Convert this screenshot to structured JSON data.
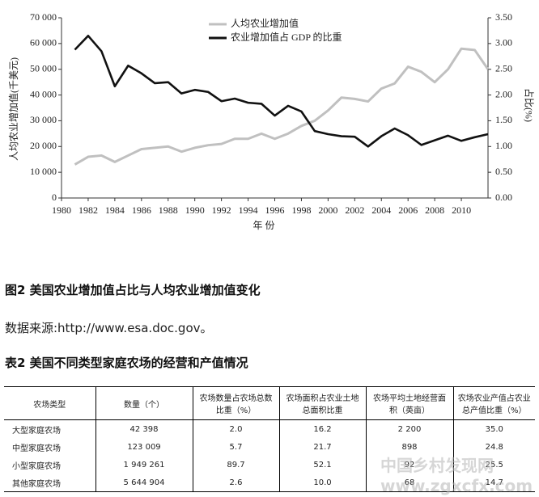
{
  "chart_data": {
    "type": "line",
    "y_label": "人均农业增加值(千美元)",
    "y2_label": "占比(%)",
    "x_label": "年 份",
    "x": [
      1981,
      1982,
      1983,
      1984,
      1985,
      1986,
      1987,
      1988,
      1989,
      1990,
      1991,
      1992,
      1993,
      1994,
      1995,
      1996,
      1997,
      1998,
      1999,
      2000,
      2001,
      2002,
      2003,
      2004,
      2005,
      2006,
      2007,
      2008,
      2009,
      2010,
      2011,
      2012
    ],
    "series": [
      {
        "name": "人均农业增加值",
        "color": "#c0c0c0",
        "values": [
          13000,
          16000,
          16500,
          14000,
          16500,
          19000,
          19500,
          20000,
          18000,
          19500,
          20500,
          21000,
          23000,
          23000,
          25000,
          23000,
          25000,
          28000,
          30000,
          34000,
          39000,
          38500,
          37500,
          42500,
          44500,
          51000,
          49000,
          45000,
          50000,
          58000,
          57500,
          50000
        ]
      },
      {
        "name": "农业增加值占 GDP 的比重",
        "color": "#111111",
        "axis": "y2",
        "values": [
          2.88,
          3.15,
          2.85,
          2.17,
          2.57,
          2.42,
          2.23,
          2.25,
          2.03,
          2.1,
          2.06,
          1.88,
          1.93,
          1.85,
          1.83,
          1.6,
          1.79,
          1.68,
          1.3,
          1.24,
          1.2,
          1.19,
          1.0,
          1.2,
          1.35,
          1.22,
          1.03,
          1.12,
          1.21,
          1.11,
          1.18,
          1.24
        ]
      }
    ],
    "xlim": [
      1980,
      2012
    ],
    "xticks": [
      1980,
      1982,
      1984,
      1986,
      1988,
      1990,
      1992,
      1994,
      1996,
      1998,
      2000,
      2002,
      2004,
      2006,
      2008,
      2010
    ],
    "ylim": [
      0,
      70000
    ],
    "yticks": [
      0,
      {
        "value": 10000,
        "label": "10 000"
      },
      {
        "value": 20000,
        "label": "20 000"
      },
      {
        "value": 30000,
        "label": "30 000"
      },
      {
        "value": 40000,
        "label": "40 000"
      },
      {
        "value": 50000,
        "label": "50 000"
      },
      {
        "value": 60000,
        "label": "60 000"
      },
      {
        "value": 70000,
        "label": "70 000"
      }
    ],
    "y2lim": [
      0,
      3.5
    ],
    "y2ticks": [
      {
        "value": 0,
        "label": "0.00"
      },
      {
        "value": 0.5,
        "label": "0.50"
      },
      {
        "value": 1,
        "label": "1.00"
      },
      {
        "value": 1.5,
        "label": "1.50"
      },
      {
        "value": 2,
        "label": "2.00"
      },
      {
        "value": 2.5,
        "label": "2.50"
      },
      {
        "value": 3,
        "label": "3.00"
      },
      {
        "value": 3.5,
        "label": "3.50"
      }
    ],
    "grid": false,
    "legend": "top"
  },
  "figure_caption": "图2 美国农业增加值占比与人均农业增加值变化",
  "source": "数据来源:http://www.esa.doc.gov。",
  "table": {
    "title": "表2 美国不同类型家庭农场的经营和产值情况",
    "header": [
      "农场类型",
      "数量（个）",
      "农场数量占农场总数比重（%）",
      "农场面积占农业土地总面积比重",
      "农场平均土地经营面积（英亩）",
      "农场农业产值占农业总产值比重（%）"
    ],
    "rows": [
      [
        "大型家庭农场",
        "42 398",
        "2.0",
        "16.2",
        "2 200",
        "35.0"
      ],
      [
        "中型家庭农场",
        "123 009",
        "5.7",
        "21.7",
        "898",
        "24.8"
      ],
      [
        "小型家庭农场",
        "1 949 261",
        "89.7",
        "52.1",
        "92",
        "25.5"
      ],
      [
        "其他家庭农场",
        "5 644 904",
        "2.6",
        "10.0",
        "68",
        "14.7"
      ]
    ]
  },
  "watermark": "中国乡村发现网 www.zgxcfx.com"
}
